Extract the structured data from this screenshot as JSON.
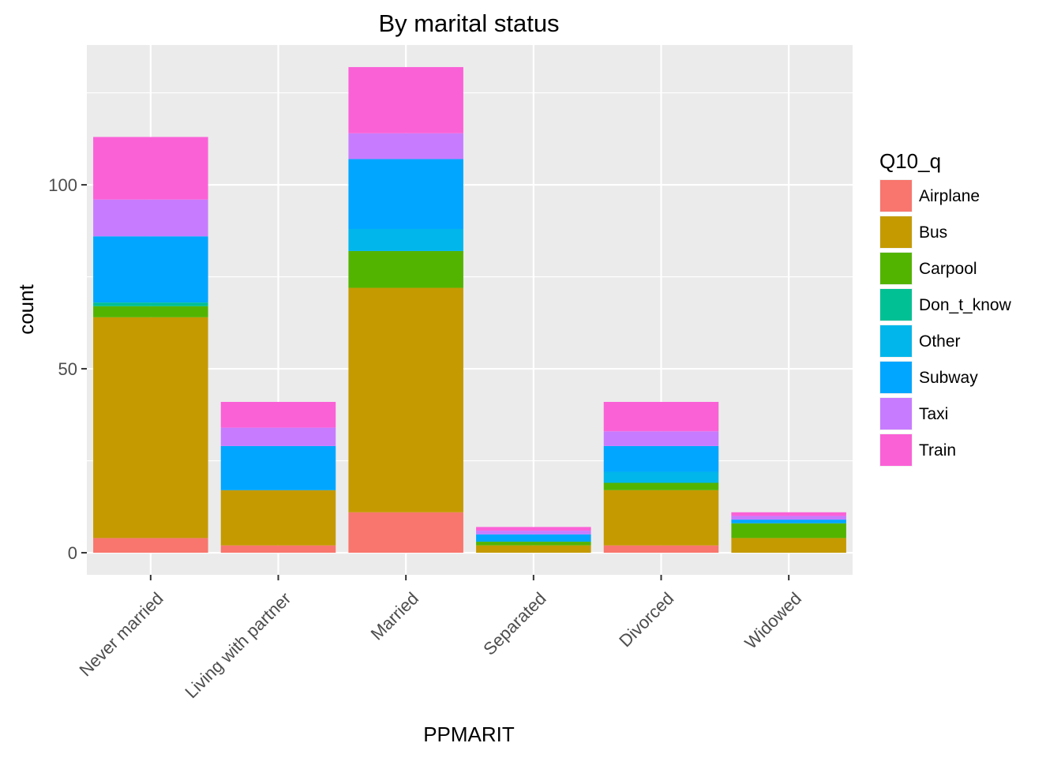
{
  "chart_data": {
    "type": "bar",
    "stacked": true,
    "title": "By marital status",
    "xlabel": "PPMARIT",
    "ylabel": "count",
    "ylim": [
      -6,
      138
    ],
    "yticks": [
      0,
      50,
      100
    ],
    "grid": true,
    "legend_position": "right",
    "legend_title": "Q10_q",
    "categories": [
      "Never married",
      "Living with partner",
      "Married",
      "Separated",
      "Divorced",
      "Widowed"
    ],
    "series": [
      {
        "name": "Airplane",
        "color": "#F8766D",
        "values": [
          4,
          2,
          11,
          0,
          2,
          0
        ]
      },
      {
        "name": "Bus",
        "color": "#C49A00",
        "values": [
          60,
          15,
          61,
          2,
          15,
          4
        ]
      },
      {
        "name": "Carpool",
        "color": "#53B400",
        "values": [
          3,
          0,
          10,
          1,
          2,
          4
        ]
      },
      {
        "name": "Don_t_know",
        "color": "#00C094",
        "values": [
          1,
          0,
          0,
          0,
          0,
          0
        ]
      },
      {
        "name": "Other",
        "color": "#00B6EB",
        "values": [
          0,
          0,
          6,
          0,
          3,
          0
        ]
      },
      {
        "name": "Subway",
        "color": "#00A6FF",
        "values": [
          18,
          12,
          19,
          2,
          7,
          1
        ]
      },
      {
        "name": "Taxi",
        "color": "#C77CFF",
        "values": [
          10,
          5,
          7,
          1,
          4,
          1
        ]
      },
      {
        "name": "Train",
        "color": "#FB61D7",
        "values": [
          17,
          7,
          18,
          1,
          8,
          1
        ]
      }
    ]
  }
}
